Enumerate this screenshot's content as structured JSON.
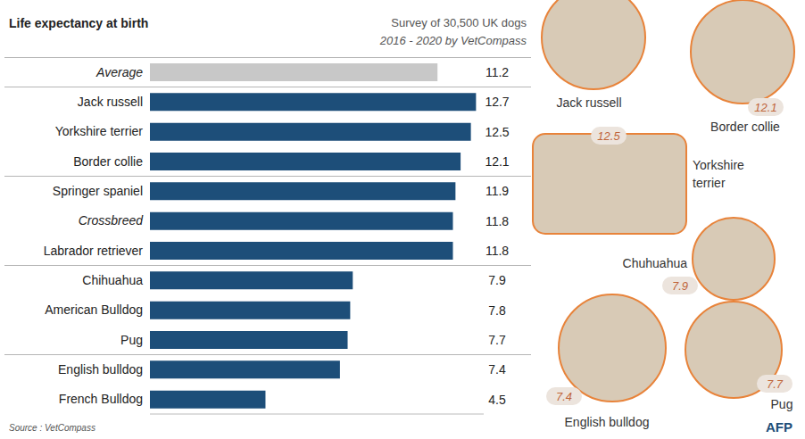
{
  "chart_data": {
    "type": "bar",
    "orientation": "horizontal",
    "title": "Life expectancy at birth",
    "annotations": [
      "Survey of 30,500 UK dogs",
      "2016 - 2020 by VetCompass"
    ],
    "source": "Source : VetCompass",
    "credit": "AFP",
    "categories": [
      "Average",
      "Jack russell",
      "Yorkshire terrier",
      "Border collie",
      "Springer spaniel",
      "Crossbreed",
      "Labrador retriever",
      "Chihuahua",
      "American Bulldog",
      "Pug",
      "English bulldog",
      "French Bulldog"
    ],
    "values": [
      11.2,
      12.7,
      12.5,
      12.1,
      11.9,
      11.8,
      11.8,
      7.9,
      7.8,
      7.7,
      7.4,
      4.5
    ],
    "colors": [
      "#c8c8c8",
      "#1d4e79",
      "#1d4e79",
      "#1d4e79",
      "#1d4e79",
      "#1d4e79",
      "#1d4e79",
      "#1d4e79",
      "#1d4e79",
      "#1d4e79",
      "#1d4e79",
      "#1d4e79"
    ],
    "xlim": [
      0,
      13
    ],
    "xticks": [
      0,
      13
    ],
    "tick_labels": false,
    "grid": false,
    "data_labels": true,
    "photos": [
      {
        "label": "Jack russell"
      },
      {
        "label": "Border collie",
        "value": 12.1
      },
      {
        "label": "Yorkshire terrier",
        "value": 12.5
      },
      {
        "label": "Chuhuahua",
        "value": 7.9
      },
      {
        "label": "English bulldog",
        "value": 7.4
      },
      {
        "label": "Pug",
        "value": 7.7
      }
    ]
  }
}
